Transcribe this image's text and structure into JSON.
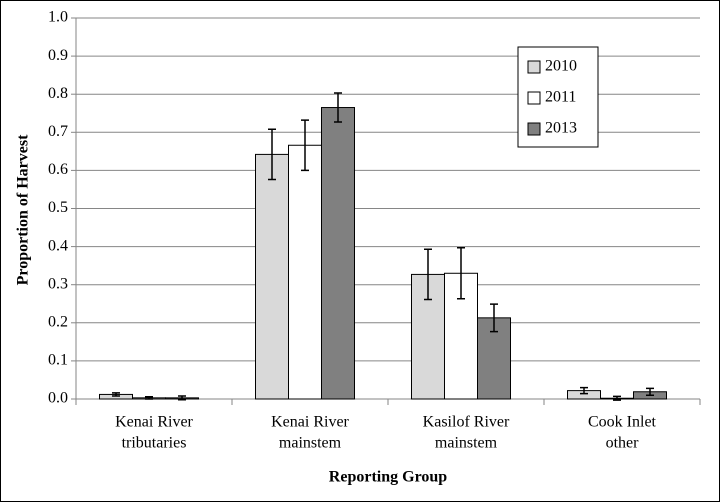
{
  "chart_data": {
    "type": "bar",
    "categories": [
      [
        "Kenai River",
        "tributaries"
      ],
      [
        "Kenai River",
        "mainstem"
      ],
      [
        "Kasilof River",
        "mainstem"
      ],
      [
        "Cook Inlet",
        "other"
      ]
    ],
    "series": [
      {
        "name": "2010",
        "color": "#d9d9d9",
        "values": [
          0.012,
          0.642,
          0.327,
          0.022
        ],
        "errors": [
          0.004,
          0.066,
          0.066,
          0.008
        ]
      },
      {
        "name": "2011",
        "color": "#ffffff",
        "values": [
          0.003,
          0.666,
          0.33,
          0.002
        ],
        "errors": [
          0.003,
          0.066,
          0.067,
          0.005
        ]
      },
      {
        "name": "2013",
        "color": "#808080",
        "values": [
          0.003,
          0.765,
          0.213,
          0.019
        ],
        "errors": [
          0.005,
          0.038,
          0.036,
          0.009
        ]
      }
    ],
    "ylim": [
      0,
      1
    ],
    "yticks": [
      {
        "value": 0,
        "label": "0.0"
      },
      0.1,
      0.2,
      0.3,
      0.4,
      0.5,
      0.6,
      0.7,
      0.8,
      0.9,
      {
        "value": 1,
        "label": "1.0"
      }
    ],
    "y_label": "Proportion of Harvest",
    "x_label": "Reporting Group",
    "grid": true,
    "legend": "upper right"
  }
}
